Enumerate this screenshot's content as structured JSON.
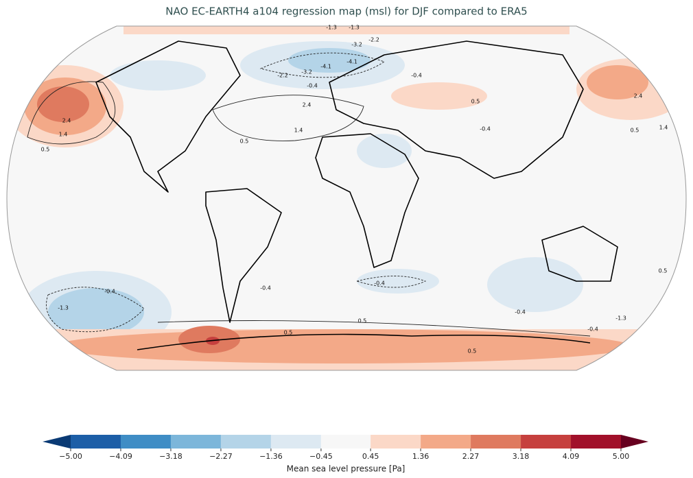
{
  "title": "NAO EC-EARTH4 a104 regression map (msl) for DJF compared to ERA5",
  "map": {
    "contour_labels": [
      -1.3,
      -1.3,
      -3.2,
      -2.2,
      -4.1,
      -4.1,
      -2.2,
      -3.2,
      -0.4,
      -0.4,
      0.5,
      2.4,
      1.4,
      0.5,
      2.4,
      1.4,
      0.5,
      2.4,
      1.4,
      0.5,
      -0.4,
      -0.4,
      -0.4,
      -0.4,
      -1.3,
      -0.4,
      0.5,
      0.5,
      0.5,
      -1.3,
      -0.4,
      0.5
    ]
  },
  "colorbar": {
    "label": "Mean sea level pressure [Pa]",
    "ticks": [
      {
        "value": -5,
        "label": "−5.00"
      },
      {
        "value": -4.09,
        "label": "−4.09"
      },
      {
        "value": -3.18,
        "label": "−3.18"
      },
      {
        "value": -2.27,
        "label": "−2.27"
      },
      {
        "value": -1.36,
        "label": "−1.36"
      },
      {
        "value": -0.45,
        "label": "−0.45"
      },
      0.45,
      1.36,
      2.27,
      3.18,
      4.09,
      {
        "value": 5,
        "label": "5.00"
      }
    ],
    "colors": [
      "#1c5ea7",
      "#3f8dc5",
      "#7cb6da",
      "#b4d4e8",
      "#dde9f2",
      "#f7f7f7",
      "#fbd8c7",
      "#f3a988",
      "#df7a5f",
      "#c6403e",
      "#a1102a"
    ],
    "under_color": "#0a3a74",
    "over_color": "#67001f"
  }
}
